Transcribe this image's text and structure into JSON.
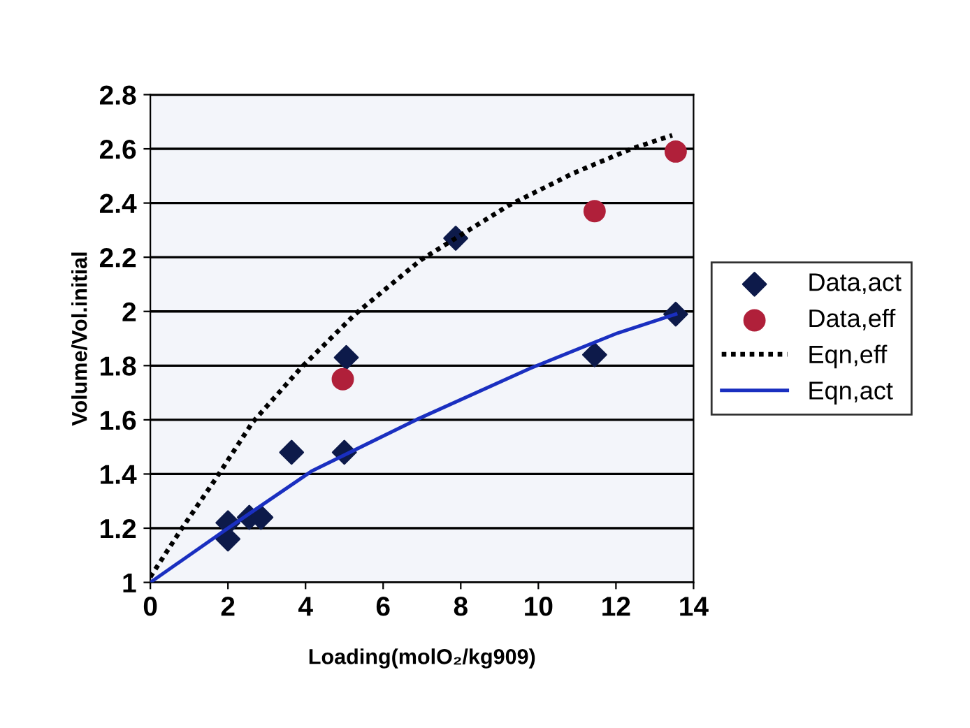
{
  "chart_data": {
    "type": "scatter",
    "xlabel": "Loading(molO₂/kg909)",
    "ylabel": "Volume/Vol.initial",
    "xlim": [
      0,
      14
    ],
    "xticks": [
      0,
      2,
      4,
      6,
      8,
      10,
      12,
      14
    ],
    "ylim": [
      1,
      2.8
    ],
    "yticks": [
      1,
      1.2,
      1.4,
      1.6,
      1.8,
      2,
      2.2,
      2.4,
      2.6,
      2.8
    ],
    "grid": "y",
    "legend": "right",
    "series": [
      {
        "name": "Data,act",
        "marker": "diamond",
        "color": "#0d1a4a",
        "x": [
          2.0,
          2.0,
          2.55,
          2.85,
          3.64,
          5.0,
          5.05,
          7.87,
          11.45,
          13.54
        ],
        "values": [
          1.22,
          1.16,
          1.24,
          1.24,
          1.48,
          1.48,
          1.83,
          2.27,
          1.84,
          1.99
        ]
      },
      {
        "name": "Data,eff",
        "type": "scatter",
        "marker": "circle",
        "color": "#b0203a",
        "x": [
          4.96,
          11.45,
          13.54
        ],
        "values": [
          1.75,
          2.37,
          2.59
        ]
      },
      {
        "name": "Eqn,eff",
        "type": "line",
        "line_style": "dotted",
        "color": "#000000",
        "x": [
          0,
          0.77,
          1.72,
          2.63,
          3.87,
          5.28,
          6.97,
          9.22,
          10.9,
          12.4,
          13.45
        ],
        "values": [
          1.02,
          1.19,
          1.39,
          1.59,
          1.79,
          1.99,
          2.19,
          2.39,
          2.51,
          2.6,
          2.65
        ]
      },
      {
        "name": "Eqn,act",
        "type": "line",
        "line_style": "solid",
        "color": "#1a2fc0",
        "x": [
          0,
          1.9,
          4.15,
          6.85,
          9.79,
          12.04,
          13.54
        ],
        "values": [
          1.0,
          1.19,
          1.41,
          1.6,
          1.79,
          1.92,
          1.99
        ]
      }
    ]
  }
}
